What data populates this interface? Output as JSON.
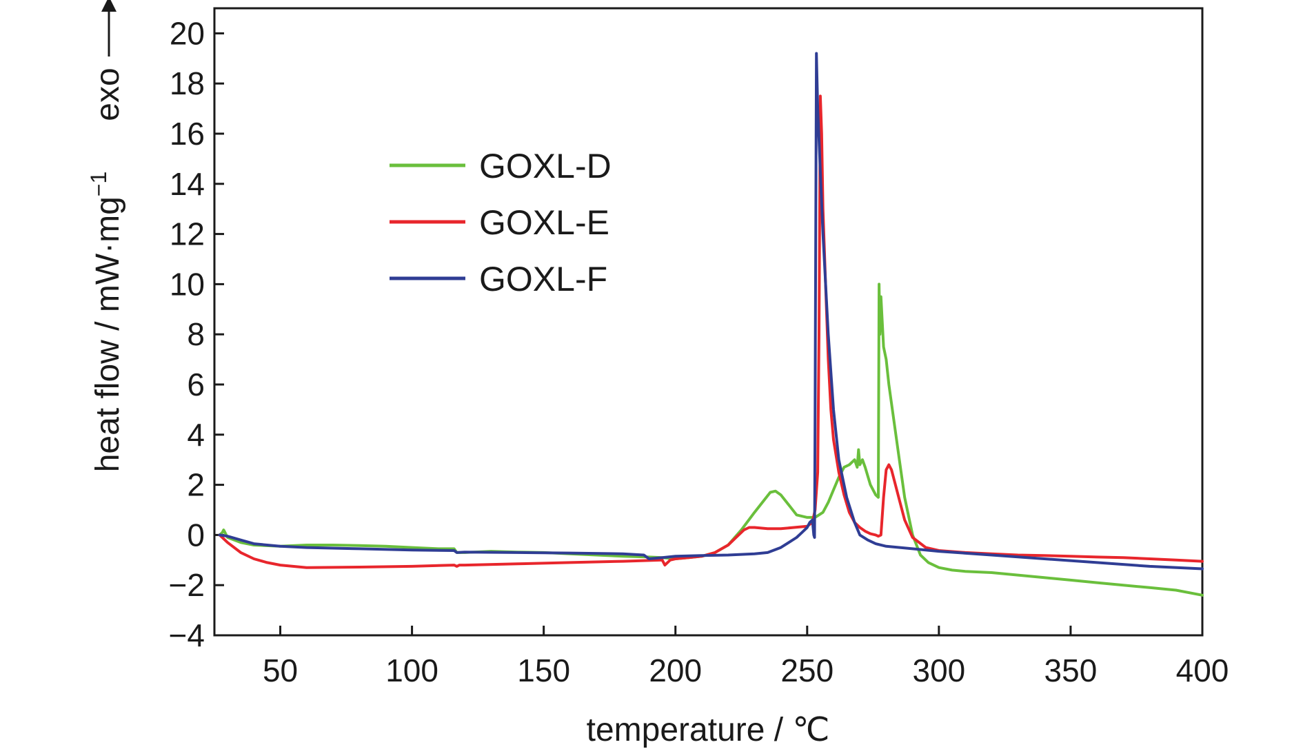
{
  "chart_data": {
    "type": "line",
    "xlabel": "temperature / ℃",
    "ylabel": "heat flow / mW·mg",
    "ylabel_sup": "−1",
    "ylabel_extra": "exo",
    "xlim": [
      25,
      400
    ],
    "ylim": [
      -4,
      21
    ],
    "x_ticks": [
      50,
      100,
      150,
      200,
      250,
      300,
      350,
      400
    ],
    "x_tick_labels": [
      "50",
      "100",
      "150",
      "200",
      "250",
      "300",
      "350",
      "400"
    ],
    "y_ticks": [
      -4,
      -2,
      0,
      2,
      4,
      6,
      8,
      10,
      12,
      14,
      16,
      18,
      20
    ],
    "y_tick_labels": [
      "−4",
      "−2",
      "0",
      "2",
      "4",
      "6",
      "8",
      "10",
      "12",
      "14",
      "16",
      "18",
      "20"
    ],
    "grid": false,
    "legend_position": "upper-left, inside plot",
    "series": [
      {
        "name": "GOXL-D",
        "color": "#6abf3c",
        "x": [
          27,
          28,
          28.5,
          30,
          35,
          40,
          50,
          60,
          70,
          80,
          90,
          100,
          110,
          116,
          117,
          120,
          130,
          140,
          150,
          160,
          170,
          180,
          190,
          195,
          200,
          205,
          210,
          215,
          220,
          225,
          230,
          233,
          236,
          238,
          240,
          243,
          246,
          250,
          253,
          256,
          258,
          260,
          262,
          264,
          266,
          267,
          268,
          269,
          269.5,
          270,
          271,
          272,
          274,
          276,
          277,
          277.3,
          277.6,
          278,
          279,
          280,
          281,
          283,
          285,
          287,
          290,
          293,
          296,
          300,
          305,
          310,
          320,
          330,
          340,
          350,
          360,
          370,
          380,
          390,
          400
        ],
        "y": [
          0,
          0.1,
          0.2,
          -0.1,
          -0.3,
          -0.4,
          -0.45,
          -0.4,
          -0.4,
          -0.42,
          -0.45,
          -0.5,
          -0.55,
          -0.55,
          -0.7,
          -0.7,
          -0.65,
          -0.68,
          -0.7,
          -0.75,
          -0.8,
          -0.85,
          -0.88,
          -0.9,
          -0.95,
          -0.9,
          -0.85,
          -0.7,
          -0.4,
          0.2,
          0.9,
          1.3,
          1.7,
          1.75,
          1.6,
          1.2,
          0.8,
          0.7,
          0.7,
          0.9,
          1.3,
          1.8,
          2.3,
          2.7,
          2.8,
          2.9,
          3.0,
          2.7,
          3.4,
          2.8,
          3.0,
          2.7,
          2.0,
          1.6,
          1.5,
          10.0,
          8.0,
          9.5,
          7.5,
          7.0,
          6.0,
          4.5,
          3.0,
          1.5,
          0.0,
          -0.8,
          -1.1,
          -1.3,
          -1.4,
          -1.45,
          -1.5,
          -1.6,
          -1.7,
          -1.8,
          -1.9,
          -2.0,
          -2.1,
          -2.2,
          -2.4
        ]
      },
      {
        "name": "GOXL-E",
        "color": "#e8262c",
        "x": [
          27,
          30,
          35,
          40,
          45,
          50,
          60,
          80,
          100,
          116,
          117,
          118,
          120,
          140,
          160,
          180,
          195,
          196,
          197,
          198,
          200,
          205,
          210,
          215,
          220,
          223,
          226,
          228,
          230,
          235,
          240,
          245,
          250,
          252,
          253,
          254,
          254.5,
          255,
          255.5,
          256,
          257,
          258,
          259,
          260,
          262,
          264,
          266,
          268,
          270,
          272,
          274,
          276,
          277,
          278,
          279,
          280,
          281,
          282,
          283,
          285,
          287,
          290,
          295,
          300,
          310,
          320,
          330,
          340,
          350,
          360,
          370,
          380,
          390,
          400
        ],
        "y": [
          0,
          -0.3,
          -0.7,
          -0.95,
          -1.1,
          -1.2,
          -1.3,
          -1.28,
          -1.25,
          -1.2,
          -1.25,
          -1.2,
          -1.2,
          -1.15,
          -1.1,
          -1.05,
          -1.0,
          -1.2,
          -1.1,
          -1.0,
          -0.95,
          -0.9,
          -0.85,
          -0.7,
          -0.4,
          -0.1,
          0.2,
          0.3,
          0.3,
          0.25,
          0.25,
          0.3,
          0.35,
          0.5,
          1.0,
          2.5,
          8.0,
          17.5,
          16.0,
          13.0,
          10.0,
          7.0,
          5.0,
          3.8,
          2.5,
          1.6,
          0.9,
          0.5,
          0.3,
          0.15,
          0.05,
          0.0,
          -0.05,
          0.0,
          1.5,
          2.6,
          2.8,
          2.6,
          2.2,
          1.4,
          0.6,
          -0.1,
          -0.5,
          -0.62,
          -0.7,
          -0.75,
          -0.8,
          -0.82,
          -0.85,
          -0.88,
          -0.9,
          -0.95,
          -1.0,
          -1.05
        ]
      },
      {
        "name": "GOXL-F",
        "color": "#2f3d94",
        "x": [
          27,
          30,
          35,
          40,
          50,
          60,
          80,
          100,
          116,
          117,
          120,
          140,
          160,
          180,
          188,
          190,
          195,
          200,
          210,
          220,
          230,
          235,
          240,
          243,
          246,
          248,
          250,
          251,
          252,
          252.5,
          252.8,
          253,
          253.5,
          254,
          256,
          258,
          260,
          262,
          265,
          268,
          270,
          273,
          276,
          280,
          290,
          300,
          320,
          340,
          360,
          380,
          400
        ],
        "y": [
          0,
          -0.05,
          -0.2,
          -0.35,
          -0.45,
          -0.5,
          -0.55,
          -0.6,
          -0.62,
          -0.7,
          -0.68,
          -0.7,
          -0.72,
          -0.75,
          -0.8,
          -0.95,
          -0.9,
          -0.85,
          -0.82,
          -0.8,
          -0.75,
          -0.7,
          -0.5,
          -0.3,
          -0.1,
          0.1,
          0.3,
          0.5,
          0.6,
          0.0,
          -0.1,
          5.0,
          19.2,
          17.0,
          12.0,
          8.0,
          5.0,
          3.0,
          1.5,
          0.5,
          0.0,
          -0.2,
          -0.35,
          -0.45,
          -0.55,
          -0.65,
          -0.8,
          -0.95,
          -1.1,
          -1.25,
          -1.35
        ]
      }
    ]
  }
}
